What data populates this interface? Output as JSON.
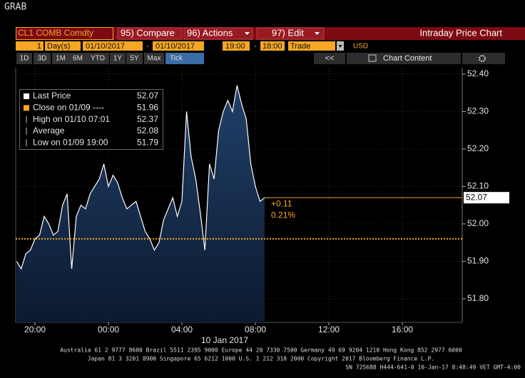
{
  "ui": {
    "app_label": "GRAB",
    "security": "CL1 COMB Comdty",
    "compare": "95) Compare",
    "actions": "96) Actions",
    "edit": "97) Edit",
    "view_title": "Intraday Price Chart",
    "period_count": "1",
    "period_unit": "Day(s)",
    "start_date": "01/10/2017",
    "separator": "-",
    "end_date": "01/10/2017",
    "start_time": "19:00",
    "end_time": "18:00",
    "field": "Trade",
    "currency": "USD",
    "ranges": [
      "1D",
      "3D",
      "1M",
      "6M",
      "YTD",
      "1Y",
      "5Y",
      "Max",
      "Tick"
    ],
    "back": "<<",
    "chart_content": "Chart Content",
    "footer": [
      "Australia 61 2 9777 8600 Brazil 5511 2395 9000 Europe 44 20 7330 7500 Germany 49 69 9204 1210 Hong Kong 852 2977 6000",
      "Japan 81 3 3201 8900      Singapore 65 6212 1000      U.S. 1 212 318 2000          Copyright 2017 Bloomberg Finance L.P.",
      "SN 725688 H444-641-0 10-Jan-17  8:48:49 VET  GMT-4:00"
    ]
  },
  "chart_data": {
    "type": "area",
    "x_label": "10 Jan 2017",
    "x": [
      -5,
      -4.75,
      -4.5,
      -4.25,
      -4,
      -3.75,
      -3.5,
      -3.25,
      -3,
      -2.75,
      -2.5,
      -2.25,
      -2,
      -1.75,
      -1.5,
      -1.25,
      -1,
      -0.75,
      -0.5,
      -0.25,
      0,
      0.25,
      0.5,
      0.75,
      1,
      1.25,
      1.5,
      1.75,
      2,
      2.25,
      2.5,
      2.75,
      3,
      3.25,
      3.5,
      3.75,
      4,
      4.25,
      4.5,
      4.75,
      5,
      5.25,
      5.5,
      5.75,
      6,
      6.25,
      6.5,
      6.75,
      7,
      7.25,
      7.5,
      7.75,
      8,
      8.25,
      8.5
    ],
    "series": [
      {
        "color": "#ffffff",
        "values": [
          51.9,
          51.88,
          51.92,
          51.93,
          51.96,
          51.97,
          52.02,
          52.0,
          51.97,
          51.98,
          52.05,
          52.08,
          51.88,
          52.02,
          52.05,
          52.04,
          52.08,
          52.1,
          52.12,
          52.16,
          52.1,
          52.13,
          52.11,
          52.07,
          52.04,
          52.05,
          52.06,
          52.02,
          51.98,
          51.96,
          51.93,
          51.95,
          52.01,
          52.04,
          52.07,
          52.02,
          52.06,
          52.3,
          52.18,
          52.12,
          52.03,
          51.93,
          52.16,
          52.12,
          52.25,
          52.3,
          52.33,
          52.3,
          52.37,
          52.32,
          52.28,
          52.16,
          52.1,
          52.06,
          52.07
        ]
      }
    ],
    "legend": [
      {
        "label": "Last Price",
        "value": 52.07
      },
      {
        "label": "Close on 01/09 ----",
        "value": 51.96
      },
      {
        "label": "High on 01/10 07:01",
        "value": 52.37
      },
      {
        "label": "Average",
        "value": 52.08
      },
      {
        "label": "Low on 01/09 19:00",
        "value": 51.79
      }
    ],
    "annotations": [
      "+0.11",
      "0.21%"
    ],
    "xlim": [
      -5.05,
      19.26
    ],
    "xticks": [
      {
        "value": -4,
        "label": "20:00"
      },
      {
        "value": 0,
        "label": "00:00"
      },
      {
        "value": 4,
        "label": "04:00"
      },
      {
        "value": 8,
        "label": "08:00"
      },
      {
        "value": 12,
        "label": "12:00"
      },
      {
        "value": 16,
        "label": "16:00"
      }
    ],
    "ylim": [
      51.737,
      52.417
    ],
    "yticks": [
      {
        "value": 51.8,
        "label": "51.80"
      },
      {
        "value": 51.9,
        "label": "51.90"
      },
      {
        "value": 52.0,
        "label": "52.00"
      },
      {
        "value": 52.1,
        "label": "52.10"
      },
      {
        "value": 52.2,
        "label": "52.20"
      },
      {
        "value": 52.3,
        "label": "52.30"
      },
      {
        "value": 52.4,
        "label": "52.40"
      }
    ],
    "grid": true,
    "reference_color": "#f5a623"
  }
}
